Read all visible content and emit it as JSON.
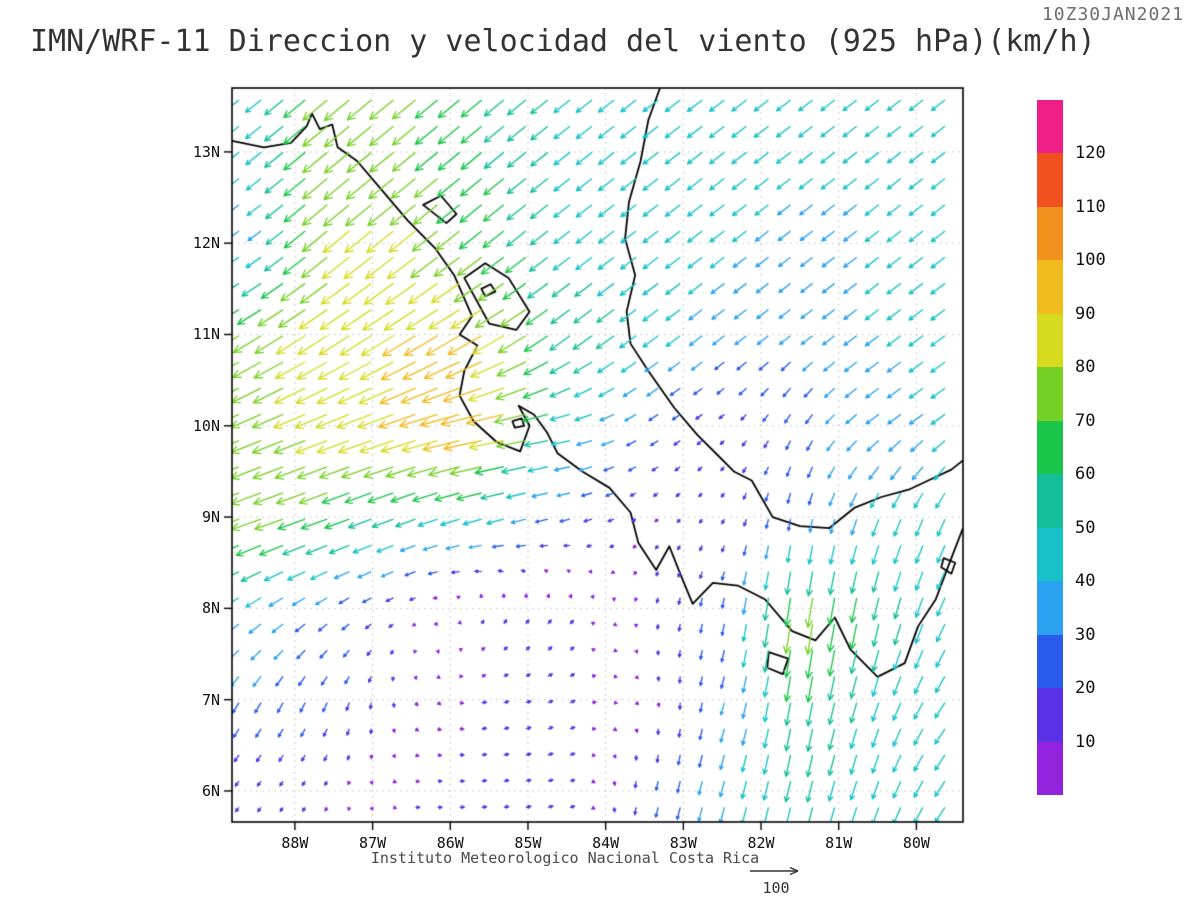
{
  "header": {
    "timestamp": "10Z30JAN2021",
    "title": "IMN/WRF-11 Direccion y velocidad del viento (925 hPa)(km/h)"
  },
  "footer": {
    "institute": "Instituto Meteorologico Nacional Costa Rica",
    "ref_arrow_label": "100"
  },
  "chart_data": {
    "type": "quiver",
    "title": "IMN/WRF-11 Direccion y velocidad del viento (925 hPa)(km/h)",
    "valid_time": "10Z30JAN2021",
    "speed_units": "km/h",
    "lon_range": [
      -88.81,
      -79.4
    ],
    "lat_range": [
      5.66,
      13.7
    ],
    "lat_ticks": {
      "labels": [
        "13N",
        "12N",
        "11N",
        "10N",
        "9N",
        "8N",
        "7N",
        "6N"
      ],
      "values": [
        13,
        12,
        11,
        10,
        9,
        8,
        7,
        6
      ]
    },
    "lon_ticks": {
      "labels": [
        "88W",
        "87W",
        "86W",
        "85W",
        "84W",
        "83W",
        "82W",
        "81W",
        "80W"
      ],
      "values": [
        -88,
        -87,
        -86,
        -85,
        -84,
        -83,
        -82,
        -81,
        -80
      ]
    },
    "reference_vector": 100,
    "colorbar": {
      "labels": [
        120,
        110,
        100,
        90,
        80,
        70,
        60,
        50,
        40,
        30,
        20,
        10
      ],
      "colors_bottom_to_top": [
        "#9322DD",
        "#5A31E6",
        "#2A5CEC",
        "#2BA2F0",
        "#16C2C8",
        "#14BE9A",
        "#1BC549",
        "#77D026",
        "#D6DB20",
        "#F0BB1D",
        "#F2901E",
        "#F1511F",
        "#F01E87"
      ],
      "level_step": 10
    },
    "wind_grid": {
      "note": "u,v in km/h; rows ordered south to north matching lats",
      "lons": [
        -88.5,
        -87.5,
        -86.5,
        -85.5,
        -84.5,
        -83.5,
        -82.5,
        -81.5,
        -80.5,
        -79.5
      ],
      "lats": [
        6,
        7,
        8,
        9,
        10,
        11,
        12,
        13
      ],
      "u": [
        [
          -8,
          -5,
          10,
          12,
          12,
          -5,
          -10,
          -12,
          -15,
          -25
        ],
        [
          -15,
          -10,
          5,
          12,
          12,
          5,
          -8,
          -10,
          -15,
          -25
        ],
        [
          -32,
          -22,
          -10,
          5,
          8,
          -2,
          -5,
          -12,
          -12,
          -20
        ],
        [
          -72,
          -62,
          -48,
          -45,
          -25,
          -8,
          -6,
          -5,
          -15,
          -18
        ],
        [
          -72,
          -78,
          -88,
          -100,
          -48,
          -22,
          -10,
          -12,
          -30,
          -33
        ],
        [
          -65,
          -70,
          -78,
          -80,
          -48,
          -38,
          -28,
          -26,
          -32,
          -34
        ],
        [
          -28,
          -62,
          -65,
          -52,
          -38,
          -36,
          -34,
          -28,
          -32,
          -33
        ],
        [
          -35,
          -60,
          -55,
          -48,
          -38,
          -36,
          -35,
          -33,
          -32,
          -32
        ]
      ],
      "v": [
        [
          -10,
          -8,
          0,
          2,
          4,
          -20,
          -38,
          -50,
          -42,
          -35
        ],
        [
          -25,
          -22,
          -8,
          2,
          5,
          -5,
          -28,
          -58,
          -45,
          -35
        ],
        [
          -22,
          -15,
          -5,
          12,
          10,
          -10,
          -25,
          -80,
          -55,
          -42
        ],
        [
          -25,
          -22,
          -18,
          -12,
          -6,
          -5,
          -10,
          -28,
          -40,
          -40
        ],
        [
          -30,
          -30,
          -28,
          -20,
          -10,
          -14,
          -8,
          -22,
          -22,
          -24
        ],
        [
          -40,
          -45,
          -48,
          -45,
          -35,
          -28,
          -22,
          -20,
          -24,
          -25
        ],
        [
          -20,
          -52,
          -52,
          -42,
          -30,
          -28,
          -26,
          -22,
          -25,
          -26
        ],
        [
          -28,
          -50,
          -45,
          -40,
          -30,
          -28,
          -27,
          -26,
          -25,
          -25
        ]
      ]
    },
    "coastlines": {
      "open": [
        [
          [
            -88.81,
            13.12
          ],
          [
            -88.4,
            13.05
          ],
          [
            -88.05,
            13.1
          ],
          [
            -87.85,
            13.28
          ],
          [
            -87.78,
            13.42
          ],
          [
            -87.68,
            13.25
          ],
          [
            -87.52,
            13.3
          ],
          [
            -87.45,
            13.05
          ],
          [
            -87.2,
            12.9
          ],
          [
            -86.9,
            12.6
          ],
          [
            -86.55,
            12.25
          ],
          [
            -86.2,
            11.95
          ],
          [
            -85.95,
            11.65
          ],
          [
            -85.72,
            11.2
          ],
          [
            -85.88,
            11.0
          ],
          [
            -85.65,
            10.88
          ],
          [
            -85.82,
            10.6
          ],
          [
            -85.88,
            10.33
          ],
          [
            -85.7,
            10.05
          ],
          [
            -85.4,
            9.82
          ],
          [
            -85.1,
            9.72
          ],
          [
            -84.98,
            10.0
          ],
          [
            -85.12,
            10.22
          ],
          [
            -84.92,
            10.12
          ],
          [
            -84.75,
            9.92
          ],
          [
            -84.62,
            9.7
          ],
          [
            -84.3,
            9.5
          ],
          [
            -83.95,
            9.32
          ],
          [
            -83.68,
            9.05
          ],
          [
            -83.58,
            8.72
          ],
          [
            -83.35,
            8.42
          ],
          [
            -83.18,
            8.68
          ],
          [
            -83.05,
            8.4
          ],
          [
            -82.88,
            8.05
          ],
          [
            -82.62,
            8.28
          ],
          [
            -82.3,
            8.25
          ],
          [
            -81.95,
            8.1
          ],
          [
            -81.6,
            7.75
          ],
          [
            -81.3,
            7.65
          ],
          [
            -81.05,
            7.9
          ],
          [
            -80.85,
            7.55
          ],
          [
            -80.5,
            7.25
          ],
          [
            -80.15,
            7.4
          ],
          [
            -79.98,
            7.8
          ],
          [
            -79.75,
            8.1
          ],
          [
            -79.55,
            8.55
          ],
          [
            -79.4,
            8.88
          ]
        ],
        [
          [
            -83.3,
            13.7
          ],
          [
            -83.45,
            13.35
          ],
          [
            -83.55,
            12.9
          ],
          [
            -83.7,
            12.45
          ],
          [
            -83.75,
            12.05
          ],
          [
            -83.62,
            11.65
          ],
          [
            -83.73,
            11.25
          ],
          [
            -83.68,
            10.9
          ],
          [
            -83.45,
            10.6
          ],
          [
            -83.12,
            10.2
          ],
          [
            -82.82,
            9.9
          ],
          [
            -82.56,
            9.68
          ],
          [
            -82.35,
            9.5
          ],
          [
            -82.12,
            9.4
          ],
          [
            -81.85,
            9.0
          ],
          [
            -81.5,
            8.9
          ],
          [
            -81.12,
            8.88
          ],
          [
            -80.8,
            9.1
          ],
          [
            -80.45,
            9.22
          ],
          [
            -80.1,
            9.3
          ],
          [
            -79.8,
            9.42
          ],
          [
            -79.55,
            9.52
          ],
          [
            -79.4,
            9.62
          ]
        ]
      ],
      "closed": [
        [
          [
            -85.82,
            11.62
          ],
          [
            -85.55,
            11.78
          ],
          [
            -85.25,
            11.62
          ],
          [
            -84.98,
            11.25
          ],
          [
            -85.15,
            11.05
          ],
          [
            -85.5,
            11.12
          ]
        ],
        [
          [
            -86.35,
            12.42
          ],
          [
            -86.05,
            12.22
          ],
          [
            -85.92,
            12.32
          ],
          [
            -86.12,
            12.52
          ]
        ],
        [
          [
            -85.6,
            11.5
          ],
          [
            -85.48,
            11.55
          ],
          [
            -85.42,
            11.47
          ],
          [
            -85.55,
            11.42
          ]
        ],
        [
          [
            -85.2,
            10.05
          ],
          [
            -85.08,
            10.08
          ],
          [
            -85.05,
            10.0
          ],
          [
            -85.17,
            9.98
          ]
        ],
        [
          [
            -81.9,
            7.52
          ],
          [
            -81.65,
            7.45
          ],
          [
            -81.72,
            7.28
          ],
          [
            -81.92,
            7.35
          ]
        ],
        [
          [
            -79.65,
            8.55
          ],
          [
            -79.5,
            8.5
          ],
          [
            -79.55,
            8.38
          ],
          [
            -79.68,
            8.45
          ]
        ]
      ]
    }
  }
}
